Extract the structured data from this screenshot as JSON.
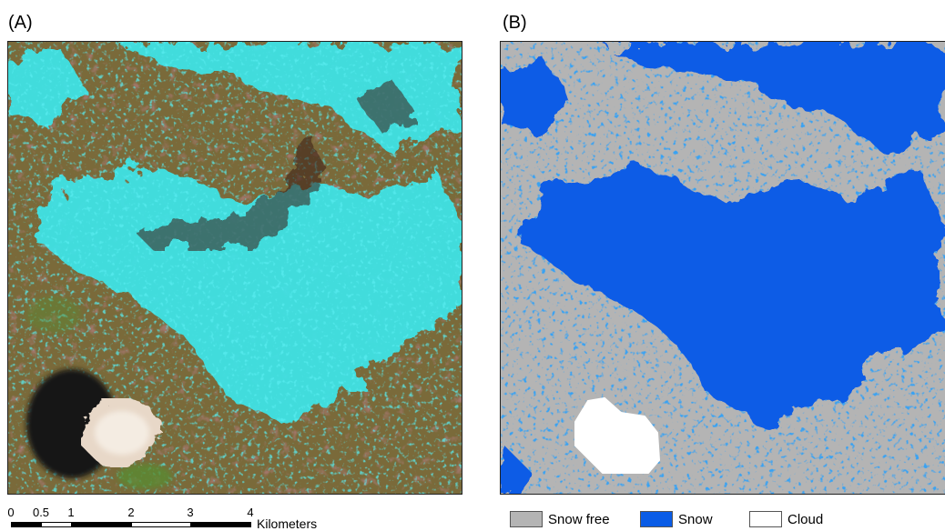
{
  "panels": {
    "a": {
      "label": "(A)"
    },
    "b": {
      "label": "(B)"
    }
  },
  "scalebar": {
    "ticks": [
      "0",
      "0.5",
      "1",
      "2",
      "3",
      "4"
    ],
    "unit": "Kilometers"
  },
  "legend": {
    "items": [
      {
        "label": "Snow free",
        "color": "#b4b4b4"
      },
      {
        "label": "Snow",
        "color": "#0a5ce6"
      },
      {
        "label": "Cloud",
        "color": "#ffffff"
      }
    ]
  },
  "colors": {
    "terrain": "#7a6a3a",
    "snow_cyan": "#3ee6ea",
    "cloud": "#e8d8c8",
    "shadow": "#151812",
    "vegetation": "#5a8a30"
  }
}
